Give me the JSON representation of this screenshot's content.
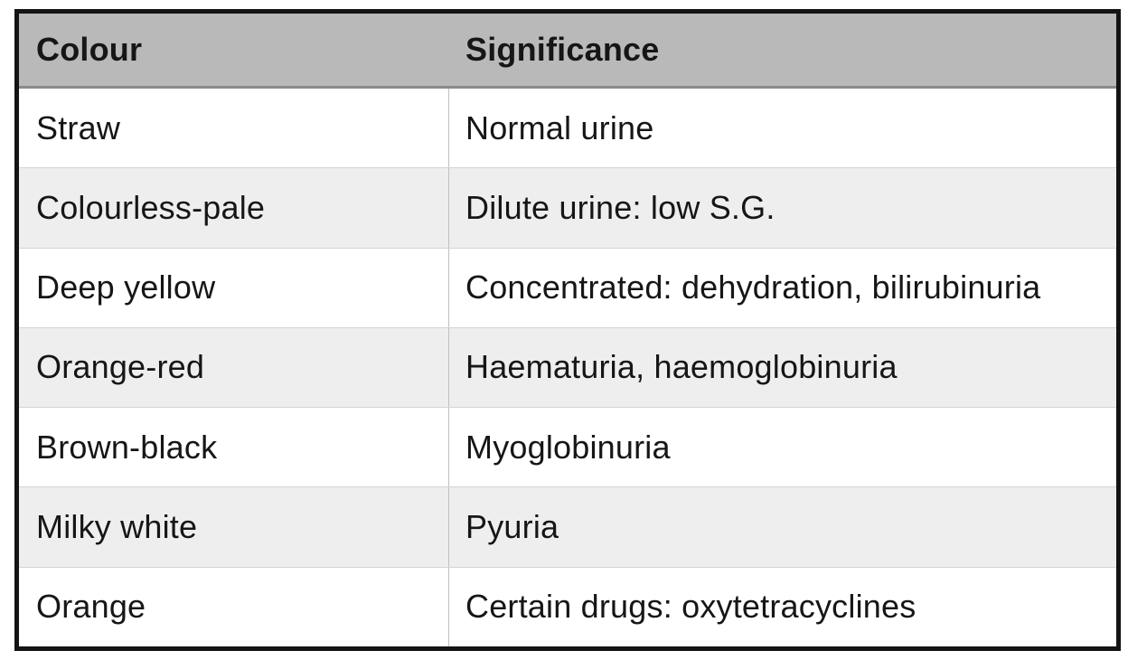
{
  "table": {
    "columns": [
      {
        "label": "Colour"
      },
      {
        "label": "Significance"
      }
    ],
    "rows": [
      {
        "colour": "Straw",
        "significance": "Normal urine"
      },
      {
        "colour": "Colourless-pale",
        "significance": "Dilute urine: low S.G."
      },
      {
        "colour": "Deep yellow",
        "significance": "Concentrated: dehydration, bilirubinuria"
      },
      {
        "colour": "Orange-red",
        "significance": "Haematuria, haemoglobinuria"
      },
      {
        "colour": "Brown-black",
        "significance": "Myoglobinuria"
      },
      {
        "colour": "Milky white",
        "significance": "Pyuria"
      },
      {
        "colour": "Orange",
        "significance": "Certain drugs: oxytetracyclines"
      }
    ],
    "colors": {
      "outer_border": "#141414",
      "header_bg": "#b9b9b9",
      "header_border_bottom": "#8a8a8a",
      "row_bg": "#ffffff",
      "row_alt_bg": "#eeeeee",
      "grid_line": "#d4d4d4",
      "column_divider": "#c0c0c0",
      "text": "#161616"
    }
  }
}
